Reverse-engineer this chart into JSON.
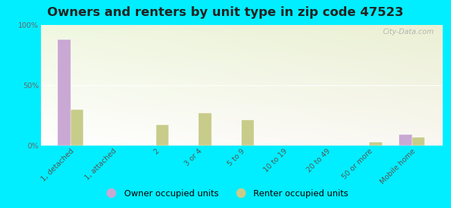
{
  "title": "Owners and renters by unit type in zip code 47523",
  "categories": [
    "1, detached",
    "1, attached",
    "2",
    "3 or 4",
    "5 to 9",
    "10 to 19",
    "20 to 49",
    "50 or more",
    "Mobile home"
  ],
  "owner_values": [
    88,
    0,
    0,
    0,
    0,
    0,
    0,
    0,
    9
  ],
  "renter_values": [
    30,
    0,
    17,
    27,
    21,
    0,
    0,
    3,
    7
  ],
  "owner_color": "#c9a8d4",
  "renter_color": "#c8cc8a",
  "bg_color_topleft": "#eef8e8",
  "bg_color_bottomright": "#d8eecc",
  "outer_background": "#00eeff",
  "ylim": [
    0,
    100
  ],
  "yticks": [
    0,
    50,
    100
  ],
  "ytick_labels": [
    "0%",
    "50%",
    "100%"
  ],
  "watermark": "City-Data.com",
  "legend_owner": "Owner occupied units",
  "legend_renter": "Renter occupied units",
  "bar_width": 0.3,
  "title_fontsize": 13,
  "tick_fontsize": 7.5,
  "legend_fontsize": 9
}
